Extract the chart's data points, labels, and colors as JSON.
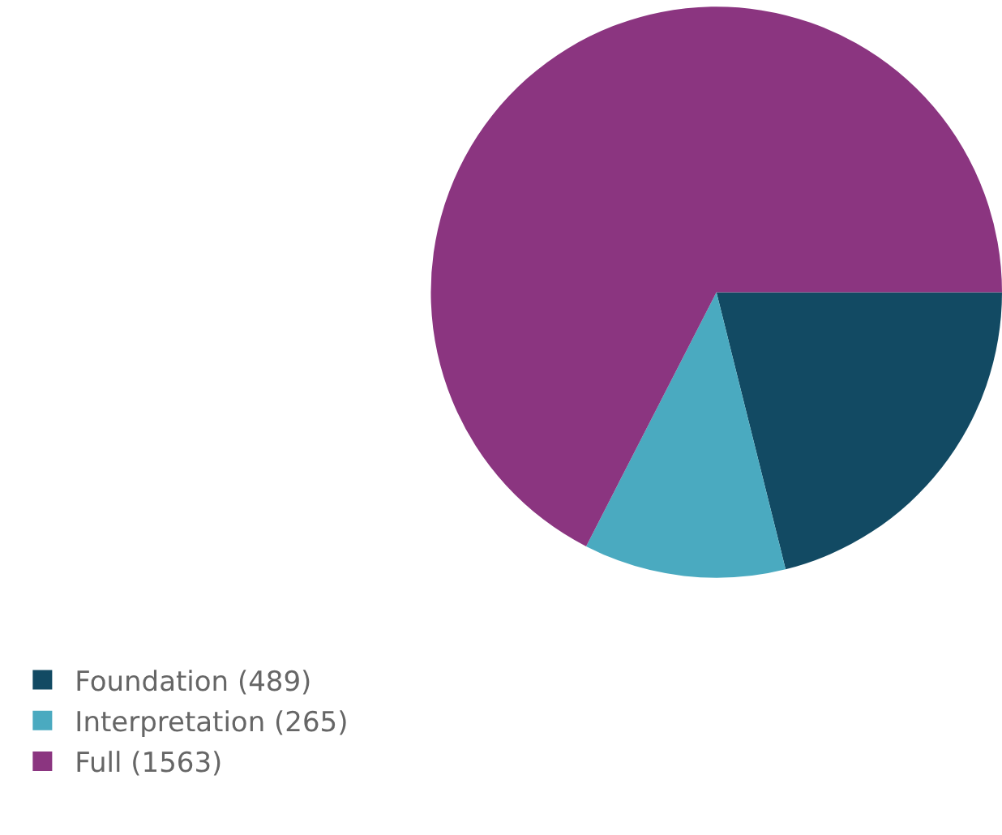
{
  "chart_data": {
    "type": "pie",
    "categories": [
      "Foundation (489)",
      "Interpretation (265)",
      "Full (1563)"
    ],
    "values": [
      489,
      265,
      1563
    ],
    "colors": [
      "#124a63",
      "#4aaac0",
      "#8b3580"
    ],
    "legend": "bottom left"
  }
}
